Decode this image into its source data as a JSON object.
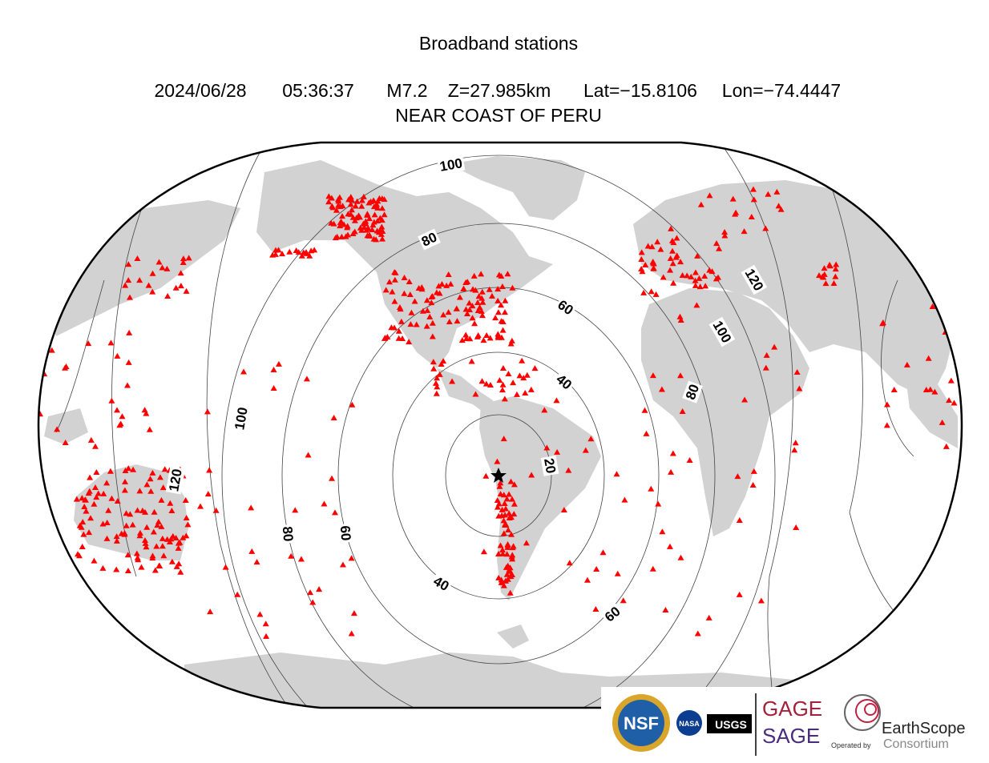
{
  "header": {
    "title": "Broadband stations",
    "date": "2024/06/28",
    "time": "05:36:37",
    "magnitude": "M7.2",
    "depth": "Z=27.985km",
    "latitude": "Lat=−15.8106",
    "longitude": "Lon=−74.4447",
    "region": "NEAR COAST OF PERU"
  },
  "contour_labels": [
    100,
    80,
    60,
    40,
    20,
    40,
    60,
    60,
    80,
    100,
    120,
    80,
    100,
    120
  ],
  "logos": {
    "nsf": "NSF",
    "nasa": "NASA",
    "usgs": "USGS",
    "gage": "GAGE",
    "sage": "SAGE",
    "operated_by": "Operated by",
    "earthscope": "EarthScope",
    "consortium": "Consortium"
  }
}
